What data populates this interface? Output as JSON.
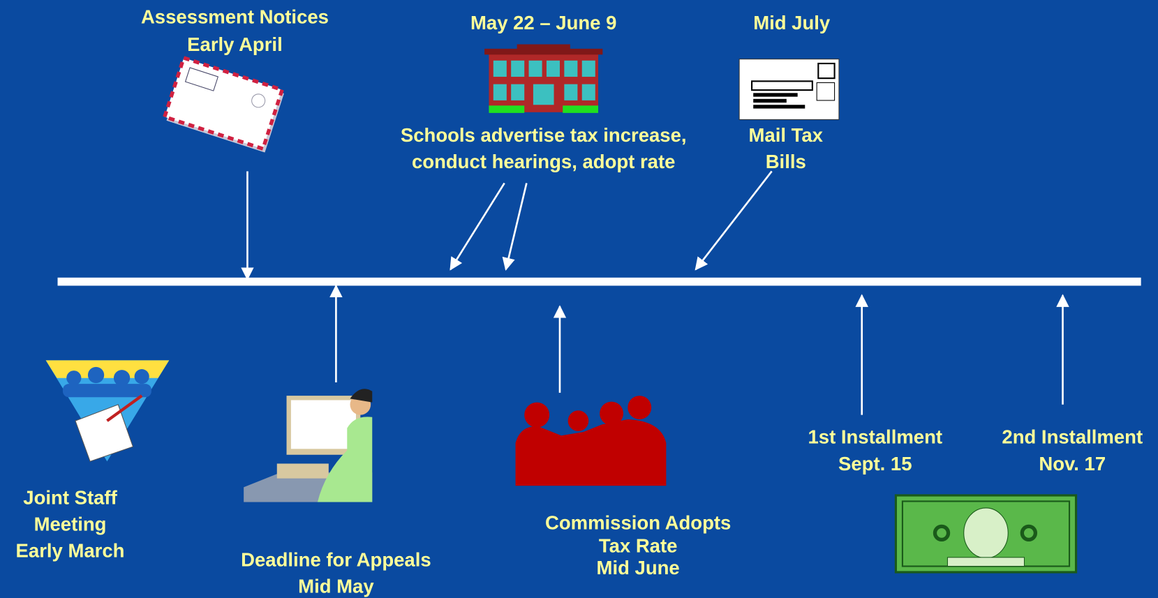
{
  "items": [
    {
      "lines": [
        "Assessment Notices",
        "Early April"
      ]
    },
    {
      "lines": [
        "May 22 – June 9"
      ]
    },
    {
      "lines": [
        "Mid July"
      ]
    },
    {
      "lines": [
        "Schools advertise tax increase,",
        "conduct  hearings, adopt rate"
      ]
    },
    {
      "lines": [
        "Mail Tax",
        "Bills"
      ]
    },
    {
      "lines": [
        "Joint Staff",
        "Meeting",
        "Early March"
      ]
    },
    {
      "lines": [
        "Deadline for Appeals",
        "Mid May"
      ]
    },
    {
      "lines": [
        "Commission Adopts",
        "Tax Rate",
        "Mid June"
      ]
    },
    {
      "lines": [
        "1st Installment",
        "Sept.  15"
      ]
    },
    {
      "lines": [
        "2nd Installment",
        "Nov. 17"
      ]
    }
  ]
}
